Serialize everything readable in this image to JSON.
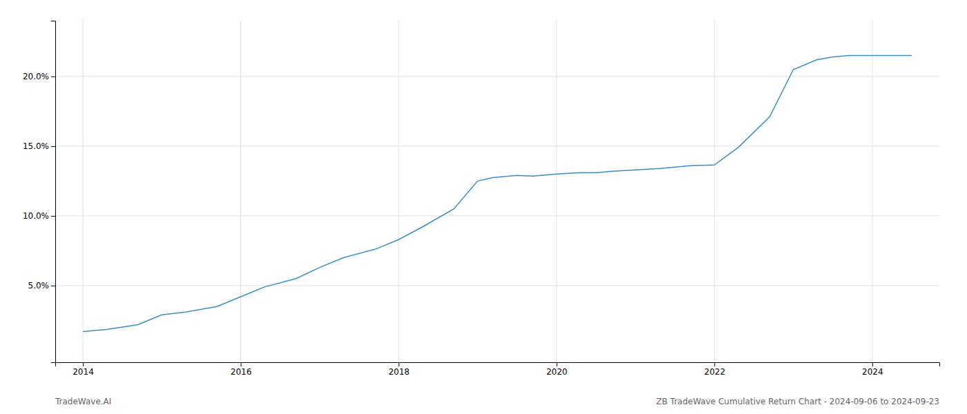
{
  "chart_data": {
    "type": "line",
    "x": [
      2014.0,
      2014.3,
      2014.7,
      2015.0,
      2015.3,
      2015.7,
      2016.0,
      2016.3,
      2016.7,
      2017.0,
      2017.3,
      2017.7,
      2018.0,
      2018.3,
      2018.7,
      2019.0,
      2019.2,
      2019.5,
      2019.7,
      2020.0,
      2020.3,
      2020.5,
      2020.7,
      2021.0,
      2021.3,
      2021.5,
      2021.7,
      2022.0,
      2022.3,
      2022.7,
      2023.0,
      2023.3,
      2023.5,
      2023.7,
      2024.0,
      2024.5
    ],
    "values": [
      1.7,
      1.85,
      2.2,
      2.9,
      3.1,
      3.5,
      4.2,
      4.9,
      5.5,
      6.3,
      7.0,
      7.6,
      8.3,
      9.2,
      10.5,
      12.5,
      12.75,
      12.9,
      12.85,
      13.0,
      13.1,
      13.1,
      13.2,
      13.3,
      13.4,
      13.5,
      13.6,
      13.65,
      14.9,
      17.1,
      20.5,
      21.2,
      21.4,
      21.5,
      21.5,
      21.5
    ],
    "color": "#3a8fc0",
    "xlim": [
      2013.65,
      2024.85
    ],
    "ylim": [
      -0.5,
      24.0
    ],
    "xticks": [
      2014,
      2016,
      2018,
      2020,
      2022,
      2024
    ],
    "yticks": [
      {
        "value": 5.0,
        "label": "5.0%"
      },
      {
        "value": 10.0,
        "label": "10.0%"
      },
      {
        "value": 15.0,
        "label": "15.0%"
      },
      {
        "value": 20.0,
        "label": "20.0%"
      }
    ],
    "grid": true,
    "annotations": [
      "TradeWave.AI",
      "ZB TradeWave Cumulative Return Chart - 2024-09-06 to 2024-09-23"
    ]
  }
}
